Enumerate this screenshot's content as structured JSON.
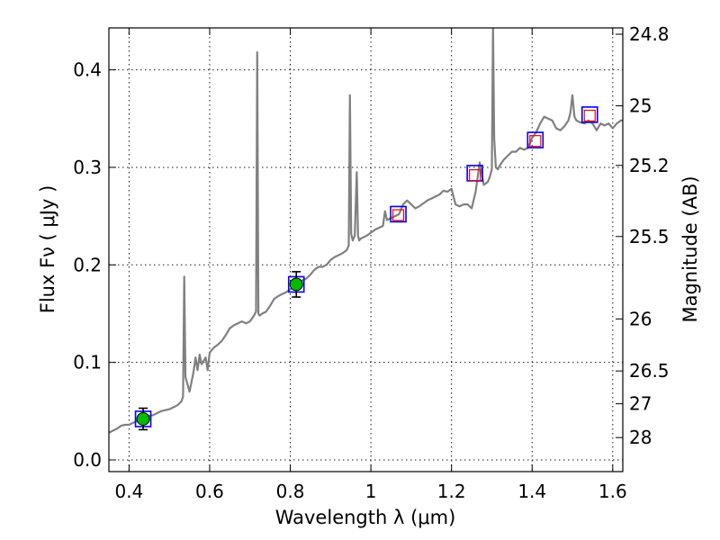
{
  "chart_data": {
    "type": "line",
    "title": "",
    "xlabel": "Wavelength  λ (μm)",
    "ylabel": "Flux  Fν  ( μJy )",
    "y2label": "Magnitude (AB)",
    "xlim": [
      0.35,
      1.625
    ],
    "ylim": [
      -0.012,
      0.443
    ],
    "grid": true,
    "x_ticks": [
      {
        "value": 0.4,
        "label": "0.4"
      },
      {
        "value": 0.6,
        "label": "0.6"
      },
      {
        "value": 0.8,
        "label": "0.8"
      },
      {
        "value": 1.0,
        "label": "1"
      },
      {
        "value": 1.2,
        "label": "1.2"
      },
      {
        "value": 1.4,
        "label": "1.4"
      },
      {
        "value": 1.6,
        "label": "1.6"
      }
    ],
    "y_ticks": [
      {
        "value": 0.0,
        "label": "0.0"
      },
      {
        "value": 0.1,
        "label": "0.1"
      },
      {
        "value": 0.2,
        "label": "0.2"
      },
      {
        "value": 0.3,
        "label": "0.3"
      },
      {
        "value": 0.4,
        "label": "0.4"
      }
    ],
    "y2_ticks": [
      {
        "value": 24.8,
        "label": "24.8"
      },
      {
        "value": 25,
        "label": "25"
      },
      {
        "value": 25.2,
        "label": "25.2"
      },
      {
        "value": 25.5,
        "label": "25.5"
      },
      {
        "value": 26,
        "label": "26"
      },
      {
        "value": 26.5,
        "label": "26.5"
      },
      {
        "value": 27,
        "label": "27"
      },
      {
        "value": 28,
        "label": "28"
      }
    ],
    "spectrum": {
      "name": "model-spectrum",
      "color": "#808080",
      "x": [
        0.35,
        0.36,
        0.37,
        0.38,
        0.39,
        0.4,
        0.41,
        0.42,
        0.43,
        0.44,
        0.45,
        0.46,
        0.47,
        0.48,
        0.49,
        0.5,
        0.51,
        0.52,
        0.53,
        0.534,
        0.537,
        0.54,
        0.55,
        0.56,
        0.565,
        0.57,
        0.575,
        0.58,
        0.59,
        0.595,
        0.6,
        0.61,
        0.62,
        0.63,
        0.64,
        0.65,
        0.66,
        0.67,
        0.68,
        0.69,
        0.7,
        0.71,
        0.715,
        0.718,
        0.721,
        0.724,
        0.73,
        0.74,
        0.75,
        0.76,
        0.77,
        0.78,
        0.79,
        0.8,
        0.81,
        0.82,
        0.83,
        0.84,
        0.85,
        0.86,
        0.87,
        0.88,
        0.89,
        0.9,
        0.91,
        0.92,
        0.93,
        0.94,
        0.945,
        0.948,
        0.951,
        0.955,
        0.96,
        0.965,
        0.968,
        0.971,
        0.975,
        0.98,
        0.99,
        1.0,
        1.01,
        1.02,
        1.03,
        1.035,
        1.04,
        1.05,
        1.06,
        1.07,
        1.08,
        1.09,
        1.1,
        1.11,
        1.12,
        1.13,
        1.14,
        1.15,
        1.16,
        1.17,
        1.18,
        1.19,
        1.2,
        1.21,
        1.22,
        1.23,
        1.24,
        1.25,
        1.26,
        1.27,
        1.28,
        1.29,
        1.295,
        1.3,
        1.303,
        1.306,
        1.31,
        1.315,
        1.32,
        1.33,
        1.34,
        1.35,
        1.36,
        1.37,
        1.38,
        1.39,
        1.4,
        1.41,
        1.42,
        1.43,
        1.44,
        1.45,
        1.46,
        1.47,
        1.48,
        1.49,
        1.495,
        1.5,
        1.505,
        1.51,
        1.52,
        1.53,
        1.54,
        1.55,
        1.56,
        1.57,
        1.58,
        1.59,
        1.6,
        1.61,
        1.62,
        1.625
      ],
      "y": [
        0.028,
        0.03,
        0.032,
        0.035,
        0.036,
        0.036,
        0.038,
        0.04,
        0.04,
        0.042,
        0.045,
        0.046,
        0.048,
        0.05,
        0.051,
        0.052,
        0.054,
        0.056,
        0.06,
        0.065,
        0.188,
        0.085,
        0.07,
        0.09,
        0.105,
        0.092,
        0.108,
        0.098,
        0.105,
        0.092,
        0.11,
        0.115,
        0.118,
        0.122,
        0.128,
        0.135,
        0.138,
        0.14,
        0.142,
        0.14,
        0.142,
        0.148,
        0.152,
        0.418,
        0.15,
        0.148,
        0.15,
        0.152,
        0.158,
        0.165,
        0.168,
        0.17,
        0.172,
        0.175,
        0.178,
        0.182,
        0.184,
        0.186,
        0.19,
        0.195,
        0.198,
        0.198,
        0.2,
        0.205,
        0.208,
        0.21,
        0.212,
        0.215,
        0.22,
        0.374,
        0.232,
        0.225,
        0.23,
        0.295,
        0.23,
        0.225,
        0.227,
        0.228,
        0.23,
        0.233,
        0.236,
        0.238,
        0.24,
        0.255,
        0.246,
        0.248,
        0.25,
        0.252,
        0.262,
        0.266,
        0.262,
        0.258,
        0.26,
        0.263,
        0.266,
        0.268,
        0.27,
        0.272,
        0.276,
        0.275,
        0.278,
        0.262,
        0.26,
        0.262,
        0.262,
        0.258,
        0.275,
        0.305,
        0.282,
        0.285,
        0.29,
        0.298,
        0.445,
        0.33,
        0.3,
        0.298,
        0.302,
        0.308,
        0.312,
        0.316,
        0.316,
        0.32,
        0.318,
        0.32,
        0.33,
        0.336,
        0.345,
        0.352,
        0.35,
        0.348,
        0.34,
        0.338,
        0.342,
        0.348,
        0.356,
        0.374,
        0.352,
        0.348,
        0.346,
        0.345,
        0.348,
        0.345,
        0.338,
        0.345,
        0.343,
        0.345,
        0.34,
        0.345,
        0.348,
        0.348
      ]
    },
    "photometry": [
      {
        "name": "green-point-1",
        "x": 0.435,
        "y": 0.042,
        "yerr": 0.011,
        "marker": "filled-circle",
        "color": "#00bb00"
      },
      {
        "name": "green-point-2",
        "x": 0.815,
        "y": 0.18,
        "yerr": 0.013,
        "marker": "filled-circle",
        "color": "#00bb00"
      }
    ],
    "model_points": [
      {
        "name": "model-box-1",
        "x": 0.435,
        "y": 0.042
      },
      {
        "name": "model-box-2",
        "x": 0.815,
        "y": 0.18
      },
      {
        "name": "model-box-3",
        "x": 1.068,
        "y": 0.252
      },
      {
        "name": "model-box-4",
        "x": 1.258,
        "y": 0.294
      },
      {
        "name": "model-box-5",
        "x": 1.408,
        "y": 0.328
      },
      {
        "name": "model-box-6",
        "x": 1.543,
        "y": 0.354
      }
    ],
    "upper_limits": [
      {
        "name": "red-limit-1",
        "x": 1.068,
        "y": 0.251
      },
      {
        "name": "red-limit-2",
        "x": 1.258,
        "y": 0.292
      },
      {
        "name": "red-limit-3",
        "x": 1.408,
        "y": 0.327
      },
      {
        "name": "red-limit-4",
        "x": 1.543,
        "y": 0.353
      }
    ],
    "colors": {
      "spectrum": "#808080",
      "model_box": "#0000ff",
      "upper_limit": "#ff0000",
      "photometry": "#00bb00"
    }
  }
}
